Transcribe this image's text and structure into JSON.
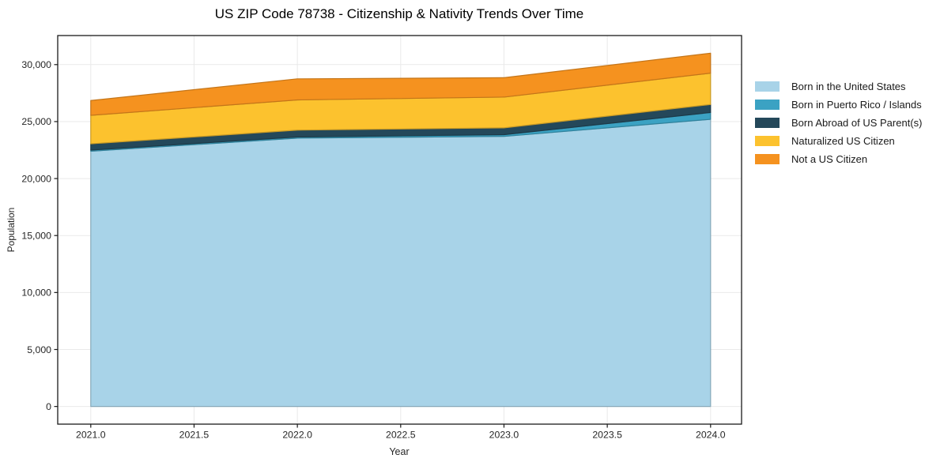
{
  "chart_data": {
    "type": "area",
    "stacked": true,
    "title": "US ZIP Code 78738 - Citizenship & Nativity Trends Over Time",
    "xlabel": "Year",
    "ylabel": "Population",
    "x": [
      2021,
      2022,
      2023,
      2024
    ],
    "series": [
      {
        "name": "Born in the United States",
        "color": "#a8d3e8",
        "values": [
          22400,
          23550,
          23700,
          25200
        ]
      },
      {
        "name": "Born in Puerto Rico / Islands",
        "color": "#3ba2c3",
        "values": [
          100,
          100,
          150,
          600
        ]
      },
      {
        "name": "Born Abroad of US Parent(s)",
        "color": "#24485a",
        "values": [
          550,
          600,
          600,
          700
        ]
      },
      {
        "name": "Naturalized US Citizen",
        "color": "#fcc22e",
        "values": [
          2500,
          2650,
          2700,
          2750
        ]
      },
      {
        "name": "Not a US Citizen",
        "color": "#f5921f",
        "values": [
          1300,
          1850,
          1700,
          1750
        ]
      }
    ],
    "xticks": {
      "values": [
        2021.0,
        2021.5,
        2022.0,
        2022.5,
        2023.0,
        2023.5,
        2024.0
      ],
      "labels": [
        "2021.0",
        "2021.5",
        "2022.0",
        "2022.5",
        "2023.0",
        "2023.5",
        "2024.0"
      ]
    },
    "yticks": {
      "values": [
        0,
        5000,
        10000,
        15000,
        20000,
        25000,
        30000
      ],
      "labels": [
        "0",
        "5,000",
        "10,000",
        "15,000",
        "20,000",
        "25,000",
        "30,000"
      ]
    },
    "xlim": [
      2020.84,
      2024.15
    ],
    "ylim": [
      -1550,
      32550
    ],
    "grid": true,
    "legend_position": "right-outside",
    "colors": {
      "axis": "#1a1a1a",
      "grid": "#e9e9e9",
      "tick_text": "#262626",
      "background": "#ffffff"
    }
  }
}
